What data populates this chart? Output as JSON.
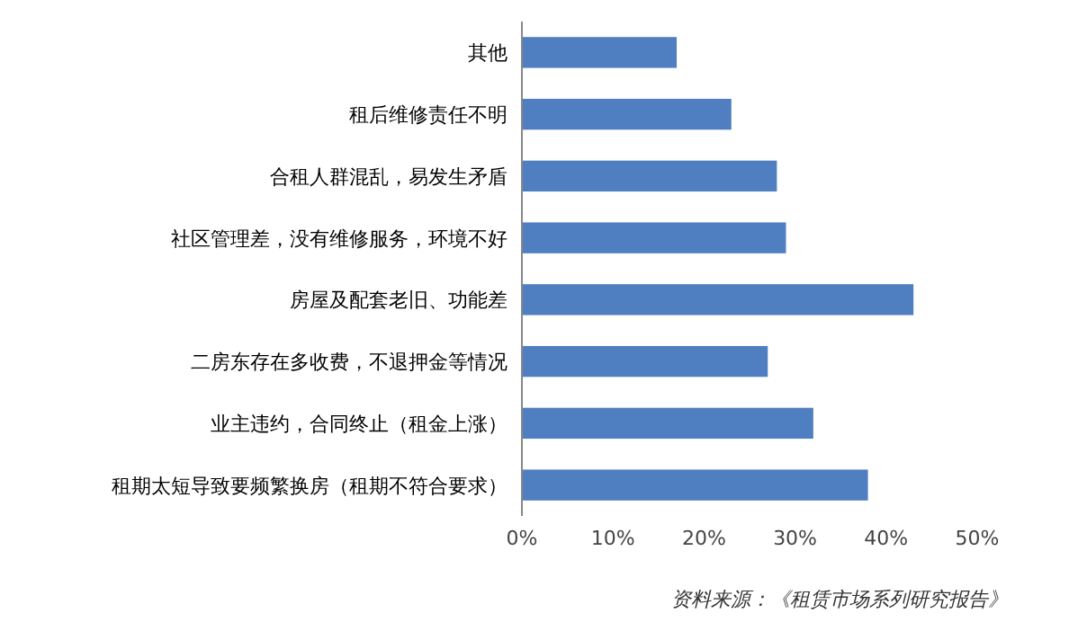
{
  "chart_data": {
    "type": "bar",
    "orientation": "horizontal",
    "categories": [
      "其他",
      "租后维修责任不明",
      "合租人群混乱，易发生矛盾",
      "社区管理差，没有维修服务，环境不好",
      "房屋及配套老旧、功能差",
      "二房东存在多收费，不退押金等情况",
      "业主违约，合同终止（租金上涨）",
      "租期太短导致要频繁换房（租期不符合要求）"
    ],
    "values": [
      17,
      23,
      28,
      29,
      43,
      27,
      32,
      38
    ],
    "color": "#4f7fc0",
    "xlim": [
      0,
      50
    ],
    "xticks": [
      {
        "value": 0,
        "label": "0%"
      },
      {
        "value": 10,
        "label": "10%"
      },
      {
        "value": 20,
        "label": "20%"
      },
      {
        "value": 30,
        "label": "30%"
      },
      {
        "value": 40,
        "label": "40%"
      },
      {
        "value": 50,
        "label": "50%"
      }
    ],
    "grid": false,
    "annotations": [
      "资料来源：《租赁市场系列研究报告》"
    ]
  }
}
